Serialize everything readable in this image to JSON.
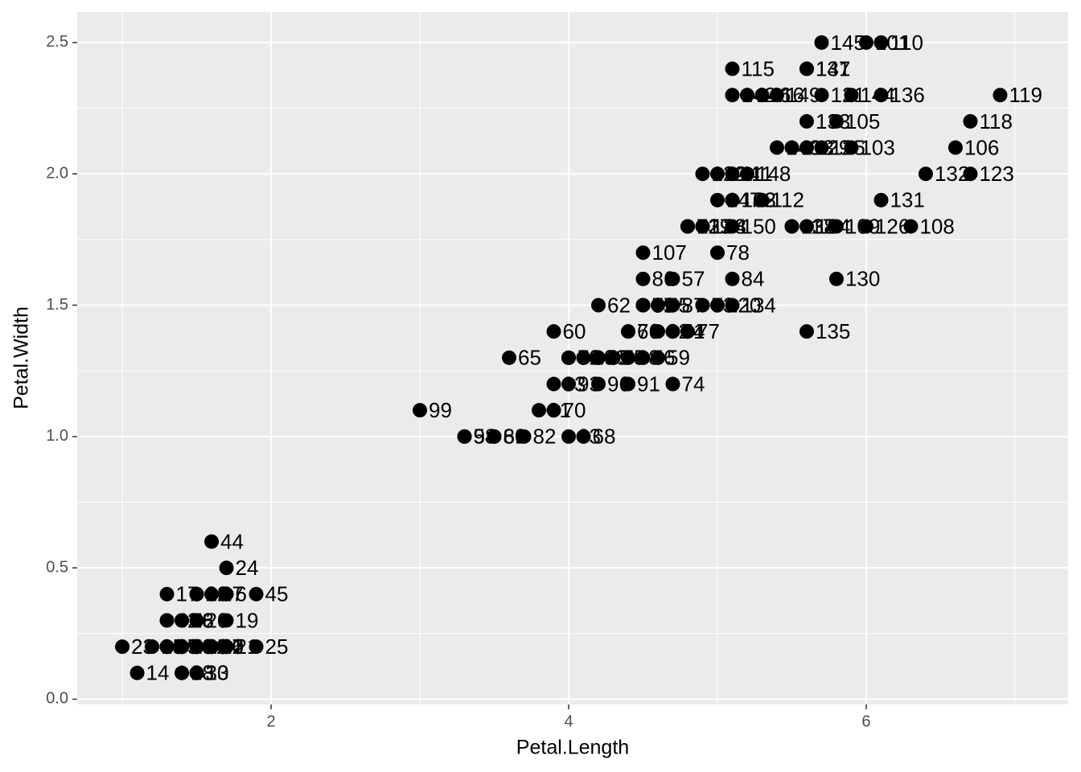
{
  "chart_data": {
    "type": "scatter",
    "x_label": "Petal.Length",
    "y_label": "Petal.Width",
    "x": [
      1.4,
      1.4,
      1.3,
      1.5,
      1.4,
      1.7,
      1.4,
      1.5,
      1.4,
      1.5,
      1.5,
      1.6,
      1.4,
      1.1,
      1.2,
      1.5,
      1.3,
      1.4,
      1.7,
      1.5,
      1.7,
      1.5,
      1.0,
      1.7,
      1.9,
      1.6,
      1.6,
      1.5,
      1.4,
      1.6,
      1.6,
      1.5,
      1.5,
      1.4,
      1.5,
      1.2,
      1.3,
      1.4,
      1.3,
      1.5,
      1.3,
      1.3,
      1.3,
      1.6,
      1.9,
      1.4,
      1.6,
      1.4,
      1.5,
      1.4,
      4.7,
      4.5,
      4.9,
      4.0,
      4.6,
      4.5,
      4.7,
      3.3,
      4.6,
      3.9,
      3.5,
      4.2,
      4.0,
      4.7,
      3.6,
      4.4,
      4.5,
      4.1,
      4.5,
      3.9,
      4.8,
      4.0,
      4.9,
      4.7,
      4.3,
      4.4,
      4.8,
      5.0,
      4.5,
      3.5,
      3.8,
      3.7,
      3.9,
      5.1,
      4.5,
      4.5,
      4.7,
      4.4,
      4.1,
      4.0,
      4.4,
      4.6,
      4.0,
      3.3,
      4.2,
      4.2,
      4.2,
      4.3,
      3.0,
      4.1,
      6.0,
      5.1,
      5.9,
      5.6,
      5.8,
      6.6,
      4.5,
      6.3,
      5.8,
      6.1,
      5.1,
      5.3,
      5.5,
      5.0,
      5.1,
      5.3,
      5.5,
      6.7,
      6.9,
      5.0,
      5.7,
      4.9,
      6.7,
      4.9,
      5.7,
      6.0,
      4.8,
      4.9,
      5.6,
      5.8,
      6.1,
      6.4,
      5.6,
      5.1,
      5.6,
      6.1,
      5.6,
      5.5,
      4.8,
      5.4,
      5.6,
      5.1,
      5.1,
      5.9,
      5.7,
      5.2,
      5.0,
      5.2,
      5.4,
      5.1
    ],
    "series": [
      {
        "color": "#000000",
        "values": [
          0.2,
          0.2,
          0.2,
          0.2,
          0.2,
          0.4,
          0.3,
          0.2,
          0.2,
          0.1,
          0.2,
          0.2,
          0.1,
          0.1,
          0.2,
          0.4,
          0.4,
          0.3,
          0.3,
          0.3,
          0.2,
          0.4,
          0.2,
          0.5,
          0.2,
          0.2,
          0.4,
          0.2,
          0.2,
          0.2,
          0.2,
          0.4,
          0.1,
          0.2,
          0.2,
          0.2,
          0.2,
          0.1,
          0.2,
          0.2,
          0.3,
          0.3,
          0.2,
          0.6,
          0.4,
          0.3,
          0.2,
          0.2,
          0.2,
          0.2,
          1.4,
          1.5,
          1.5,
          1.3,
          1.5,
          1.3,
          1.6,
          1.0,
          1.3,
          1.4,
          1.0,
          1.5,
          1.0,
          1.4,
          1.3,
          1.4,
          1.5,
          1.0,
          1.5,
          1.1,
          1.8,
          1.3,
          1.5,
          1.2,
          1.3,
          1.4,
          1.4,
          1.7,
          1.5,
          1.0,
          1.1,
          1.0,
          1.2,
          1.6,
          1.5,
          1.6,
          1.5,
          1.3,
          1.3,
          1.3,
          1.2,
          1.4,
          1.2,
          1.0,
          1.3,
          1.2,
          1.3,
          1.3,
          1.1,
          1.3,
          2.5,
          1.9,
          2.1,
          1.8,
          2.2,
          2.1,
          1.7,
          1.8,
          1.8,
          2.5,
          2.0,
          1.9,
          2.1,
          2.0,
          2.4,
          2.3,
          1.8,
          2.2,
          2.3,
          1.5,
          2.3,
          2.0,
          2.0,
          1.8,
          2.1,
          1.8,
          1.8,
          1.8,
          2.1,
          1.6,
          1.9,
          2.0,
          2.2,
          1.5,
          1.4,
          2.3,
          2.4,
          1.8,
          1.8,
          2.1,
          2.4,
          2.3,
          1.9,
          2.3,
          2.5,
          2.3,
          1.9,
          2.0,
          2.3,
          1.8
        ],
        "labels": [
          "1",
          "2",
          "3",
          "4",
          "5",
          "6",
          "7",
          "8",
          "9",
          "10",
          "11",
          "12",
          "13",
          "14",
          "15",
          "16",
          "17",
          "18",
          "19",
          "20",
          "21",
          "22",
          "23",
          "24",
          "25",
          "26",
          "27",
          "28",
          "29",
          "30",
          "31",
          "32",
          "33",
          "34",
          "35",
          "36",
          "37",
          "38",
          "39",
          "40",
          "41",
          "42",
          "43",
          "44",
          "45",
          "46",
          "47",
          "48",
          "49",
          "50",
          "51",
          "52",
          "53",
          "54",
          "55",
          "56",
          "57",
          "58",
          "59",
          "60",
          "61",
          "62",
          "63",
          "64",
          "65",
          "66",
          "67",
          "68",
          "69",
          "70",
          "71",
          "72",
          "73",
          "74",
          "75",
          "76",
          "77",
          "78",
          "79",
          "80",
          "81",
          "82",
          "83",
          "84",
          "85",
          "86",
          "87",
          "88",
          "89",
          "90",
          "91",
          "92",
          "93",
          "94",
          "95",
          "96",
          "97",
          "98",
          "99",
          "100",
          "101",
          "102",
          "103",
          "104",
          "105",
          "106",
          "107",
          "108",
          "109",
          "110",
          "111",
          "112",
          "113",
          "114",
          "115",
          "116",
          "117",
          "118",
          "119",
          "120",
          "121",
          "122",
          "123",
          "124",
          "125",
          "126",
          "127",
          "128",
          "129",
          "130",
          "131",
          "132",
          "133",
          "134",
          "135",
          "136",
          "137",
          "138",
          "139",
          "140",
          "141",
          "142",
          "143",
          "144",
          "145",
          "146",
          "147",
          "148",
          "149",
          "150"
        ]
      }
    ],
    "xlim": [
      0.697,
      7.357
    ],
    "ylim": [
      -0.02,
      2.616
    ],
    "xticks": [
      2,
      4,
      6
    ],
    "yticks": [
      {
        "value": 0,
        "label": "0.0"
      },
      0.5,
      {
        "value": 1,
        "label": "1.0"
      },
      1.5,
      {
        "value": 2,
        "label": "2.0"
      },
      2.5
    ],
    "xminor": [
      1,
      3,
      5,
      7
    ],
    "yminor": [
      0.25,
      0.75,
      1.25,
      1.75,
      2.25
    ],
    "grid": true
  }
}
